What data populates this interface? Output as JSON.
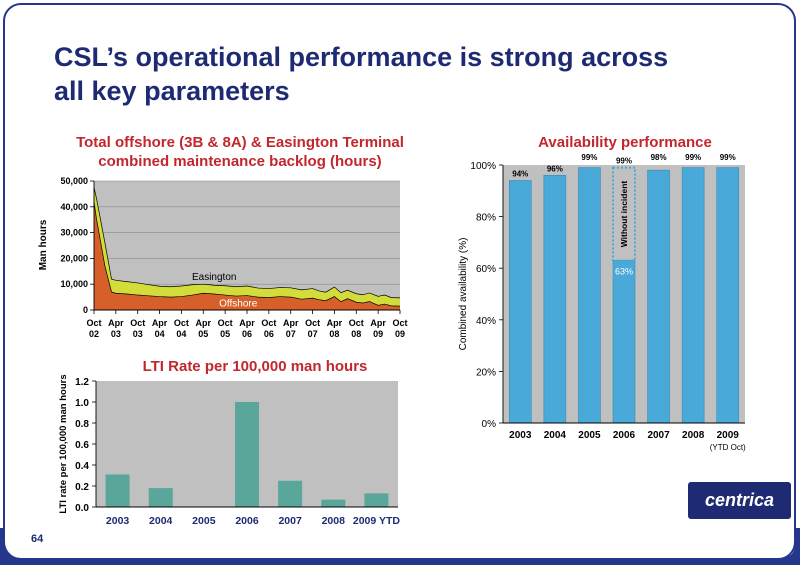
{
  "slide": {
    "title_line1": "CSL’s operational performance is strong across",
    "title_line2": "all key parameters",
    "page_number": "64",
    "logo_text": "centrica"
  },
  "chart_data": [
    {
      "type": "area",
      "title_line1": "Total offshore (3B & 8A) & Easington Terminal",
      "title_line2": "combined maintenance backlog (hours)",
      "ylabel": "Man hours",
      "ylim": [
        0,
        50000
      ],
      "y_ticks": [
        "0",
        "10,000",
        "20,000",
        "30,000",
        "40,000",
        "50,000"
      ],
      "x_tick_labels": [
        [
          "Oct",
          "02"
        ],
        [
          "Apr",
          "03"
        ],
        [
          "Oct",
          "03"
        ],
        [
          "Apr",
          "04"
        ],
        [
          "Oct",
          "04"
        ],
        [
          "Apr",
          "05"
        ],
        [
          "Oct",
          "05"
        ],
        [
          "Apr",
          "06"
        ],
        [
          "Oct",
          "06"
        ],
        [
          "Apr",
          "07"
        ],
        [
          "Oct",
          "07"
        ],
        [
          "Apr",
          "08"
        ],
        [
          "Oct",
          "08"
        ],
        [
          "Apr",
          "09"
        ],
        [
          "Oct",
          "09"
        ]
      ],
      "x_range": [
        0,
        14
      ],
      "series": [
        {
          "name": "Offshore",
          "x": [
            0,
            0.12,
            0.5,
            0.8,
            1.0,
            1.5,
            2.0,
            2.5,
            3.0,
            3.5,
            4.0,
            4.5,
            5.0,
            5.5,
            6.0,
            6.5,
            7.0,
            7.5,
            8.0,
            8.5,
            9.0,
            9.5,
            10.0,
            10.3,
            10.6,
            11.0,
            11.3,
            11.6,
            12.0,
            12.3,
            12.6,
            13.0,
            13.3,
            13.6,
            14.0
          ],
          "y": [
            42000,
            35000,
            17000,
            7000,
            6500,
            6200,
            5800,
            5500,
            5200,
            5000,
            5200,
            5800,
            6500,
            6200,
            5800,
            5400,
            5600,
            5000,
            4800,
            5200,
            5000,
            4200,
            4600,
            4000,
            3600,
            5200,
            3200,
            4400,
            3000,
            2700,
            3300,
            1800,
            2300,
            1600,
            1500
          ]
        },
        {
          "name": "Easington",
          "x": [
            0,
            0.12,
            0.5,
            0.8,
            1.0,
            1.5,
            2.0,
            2.5,
            3.0,
            3.5,
            4.0,
            4.5,
            5.0,
            5.5,
            6.0,
            6.5,
            7.0,
            7.5,
            8.0,
            8.5,
            9.0,
            9.5,
            10.0,
            10.3,
            10.6,
            11.0,
            11.3,
            11.6,
            12.0,
            12.3,
            12.6,
            13.0,
            13.3,
            13.6,
            14.0
          ],
          "y": [
            47500,
            43000,
            26000,
            12000,
            11500,
            11000,
            10500,
            9800,
            9200,
            9000,
            9300,
            9800,
            10000,
            9600,
            9400,
            9000,
            9300,
            8500,
            8300,
            8700,
            8600,
            7800,
            8300,
            7400,
            6900,
            8900,
            6700,
            7700,
            6300,
            5900,
            6600,
            5300,
            5800,
            4800,
            4700
          ]
        }
      ]
    },
    {
      "type": "bar",
      "title": "Availability performance",
      "ylabel": "Combined availability (%)",
      "ylim": [
        0,
        100
      ],
      "y_ticks": [
        "0%",
        "20%",
        "40%",
        "60%",
        "80%",
        "100%"
      ],
      "categories": [
        "2003",
        "2004",
        "2005",
        "2006",
        "2007",
        "2008",
        "2009"
      ],
      "values": [
        94,
        96,
        99,
        63,
        98,
        99,
        99
      ],
      "value_labels": [
        "94%",
        "96%",
        "99%",
        "63%",
        "98%",
        "99%",
        "99%"
      ],
      "without_incident": {
        "category": "2006",
        "value": 99,
        "label": "99%",
        "annotation": "Without incident"
      },
      "x_note": "(YTD Oct)"
    },
    {
      "type": "bar",
      "title": "LTI Rate per 100,000 man hours",
      "ylabel": "LTI rate per 100,000 man hours",
      "ylim": [
        0,
        1.2
      ],
      "y_ticks": [
        "0.0",
        "0.2",
        "0.4",
        "0.6",
        "0.8",
        "1.0",
        "1.2"
      ],
      "categories": [
        "2003",
        "2004",
        "2005",
        "2006",
        "2007",
        "2008",
        "2009 YTD"
      ],
      "values": [
        0.31,
        0.18,
        0,
        1.0,
        0.25,
        0.07,
        0.13
      ]
    }
  ],
  "colors": {
    "title": "#1e2b73",
    "chart_title": "#c2272d",
    "offshore": "#d6602a",
    "easington": "#d2dc3a",
    "availability_bar": "#49a9d8",
    "lti_bar": "#5aa69a",
    "plot_bg": "#c0c0c0"
  }
}
